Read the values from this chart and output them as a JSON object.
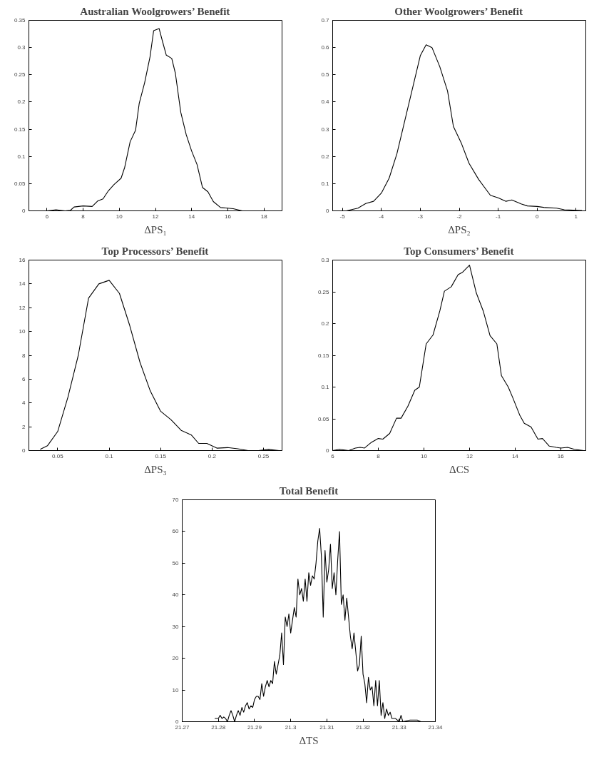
{
  "chart_data": [
    {
      "type": "line",
      "title": "Australian Woolgrowers’ Benefit",
      "xlabel": "ΔPS₁",
      "color": "#000000",
      "grid": false,
      "x": [
        6,
        6.5,
        7,
        7.3,
        7.5,
        8,
        8.5,
        8.8,
        9.1,
        9.4,
        9.7,
        10.1,
        10.3,
        10.6,
        10.9,
        11.1,
        11.4,
        11.7,
        11.9,
        12.2,
        12.4,
        12.6,
        12.9,
        13.1,
        13.4,
        13.7,
        14,
        14.3,
        14.6,
        14.9,
        15.2,
        15.6,
        16,
        16.3,
        16.8,
        18.5
      ],
      "values": [
        0,
        0.002,
        0,
        0.001,
        0.007,
        0.009,
        0.008,
        0.018,
        0.022,
        0.037,
        0.048,
        0.06,
        0.08,
        0.127,
        0.148,
        0.197,
        0.235,
        0.283,
        0.331,
        0.335,
        0.31,
        0.286,
        0.28,
        0.253,
        0.181,
        0.14,
        0.11,
        0.085,
        0.043,
        0.035,
        0.017,
        0.006,
        0.005,
        0.004,
        0,
        0
      ],
      "xlim": [
        5,
        19
      ],
      "ylim": [
        0,
        0.35
      ],
      "xticks": [
        6,
        8,
        10,
        12,
        14,
        16,
        18
      ],
      "yticks": [
        0,
        0.05,
        0.1,
        0.15,
        0.2,
        0.25,
        0.3,
        0.35
      ]
    },
    {
      "type": "line",
      "title": "Other Woolgrowers’ Benefit",
      "xlabel": "ΔPS₂",
      "color": "#000000",
      "grid": false,
      "x": [
        -4.9,
        -4.6,
        -4.4,
        -4.2,
        -4,
        -3.8,
        -3.6,
        -3.4,
        -3.2,
        -3,
        -2.85,
        -2.7,
        -2.5,
        -2.3,
        -2.15,
        -1.95,
        -1.75,
        -1.5,
        -1.2,
        -1,
        -0.8,
        -0.65,
        -0.4,
        -0.25,
        0,
        0.2,
        0.5,
        0.7,
        1.15
      ],
      "values": [
        0,
        0.01,
        0.027,
        0.035,
        0.065,
        0.12,
        0.21,
        0.33,
        0.45,
        0.57,
        0.61,
        0.6,
        0.53,
        0.44,
        0.31,
        0.25,
        0.175,
        0.115,
        0.057,
        0.048,
        0.035,
        0.04,
        0.025,
        0.018,
        0.016,
        0.012,
        0.01,
        0.004,
        0.001
      ],
      "xlim": [
        -5.25,
        1.25
      ],
      "ylim": [
        0,
        0.7
      ],
      "xticks": [
        -5,
        -4,
        -3,
        -2,
        -1,
        0,
        1
      ],
      "yticks": [
        0,
        0.1,
        0.2,
        0.3,
        0.4,
        0.5,
        0.6,
        0.7
      ]
    },
    {
      "type": "line",
      "title": "Top Processors’ Benefit",
      "xlabel": "ΔPS₃",
      "color": "#000000",
      "grid": false,
      "x": [
        0.033,
        0.04,
        0.05,
        0.06,
        0.07,
        0.08,
        0.09,
        0.1,
        0.11,
        0.12,
        0.13,
        0.14,
        0.15,
        0.16,
        0.17,
        0.18,
        0.187,
        0.195,
        0.205,
        0.215,
        0.225,
        0.235,
        0.245,
        0.255,
        0.265
      ],
      "values": [
        0.1,
        0.4,
        1.6,
        4.5,
        8,
        12.8,
        14,
        14.3,
        13.2,
        10.5,
        7.4,
        5,
        3.3,
        2.6,
        1.7,
        1.3,
        0.6,
        0.6,
        0.2,
        0.25,
        0.15,
        0,
        0,
        0.1,
        0
      ],
      "xlim": [
        0.022,
        0.268
      ],
      "ylim": [
        0,
        16
      ],
      "xticks": [
        0.05,
        0.1,
        0.15,
        0.2,
        0.25
      ],
      "yticks": [
        0,
        2,
        4,
        6,
        8,
        10,
        12,
        14,
        16
      ]
    },
    {
      "type": "line",
      "title": "Top Consumers’ Benefit",
      "xlabel": "ΔCS",
      "color": "#000000",
      "grid": false,
      "x": [
        6,
        6.3,
        6.7,
        7,
        7.2,
        7.4,
        7.7,
        8,
        8.2,
        8.5,
        8.8,
        9,
        9.3,
        9.6,
        9.8,
        10.1,
        10.4,
        10.7,
        10.9,
        11.2,
        11.5,
        11.7,
        12,
        12.3,
        12.6,
        12.9,
        13.2,
        13.4,
        13.7,
        13.9,
        14.2,
        14.4,
        14.7,
        15,
        15.2,
        15.5,
        15.8,
        16,
        16.3,
        16.6,
        17
      ],
      "values": [
        0,
        0.002,
        0,
        0.004,
        0.005,
        0.004,
        0.013,
        0.019,
        0.018,
        0.027,
        0.051,
        0.051,
        0.07,
        0.095,
        0.1,
        0.168,
        0.182,
        0.22,
        0.251,
        0.258,
        0.277,
        0.281,
        0.292,
        0.248,
        0.22,
        0.181,
        0.168,
        0.118,
        0.1,
        0.083,
        0.056,
        0.043,
        0.037,
        0.018,
        0.019,
        0.007,
        0.005,
        0.004,
        0.005,
        0.002,
        0
      ],
      "xlim": [
        6,
        17.1
      ],
      "ylim": [
        0,
        0.3
      ],
      "xticks": [
        6,
        8,
        10,
        12,
        14,
        16
      ],
      "yticks": [
        0,
        0.05,
        0.1,
        0.15,
        0.2,
        0.25,
        0.3
      ]
    },
    {
      "type": "line",
      "title": "Total Benefit",
      "xlabel": "ΔTS",
      "color": "#000000",
      "grid": false,
      "x": [
        21.279,
        21.28,
        21.2805,
        21.281,
        21.2815,
        21.282,
        21.2825,
        21.283,
        21.2835,
        21.284,
        21.2845,
        21.285,
        21.2855,
        21.286,
        21.2865,
        21.287,
        21.2875,
        21.288,
        21.2885,
        21.289,
        21.2895,
        21.29,
        21.2905,
        21.291,
        21.2915,
        21.292,
        21.2925,
        21.293,
        21.2935,
        21.294,
        21.2945,
        21.295,
        21.2955,
        21.296,
        21.2965,
        21.297,
        21.2975,
        21.298,
        21.2985,
        21.299,
        21.2995,
        21.3,
        21.3005,
        21.301,
        21.3015,
        21.302,
        21.3025,
        21.303,
        21.3035,
        21.304,
        21.3045,
        21.305,
        21.3055,
        21.306,
        21.3065,
        21.307,
        21.3075,
        21.308,
        21.3085,
        21.309,
        21.3095,
        21.31,
        21.3105,
        21.311,
        21.3115,
        21.312,
        21.3125,
        21.313,
        21.3135,
        21.314,
        21.3145,
        21.315,
        21.3155,
        21.316,
        21.3165,
        21.317,
        21.3175,
        21.318,
        21.3185,
        21.319,
        21.3195,
        21.32,
        21.3205,
        21.321,
        21.3215,
        21.322,
        21.3225,
        21.323,
        21.3235,
        21.324,
        21.3245,
        21.325,
        21.3255,
        21.326,
        21.3265,
        21.327,
        21.3275,
        21.328,
        21.329,
        21.33,
        21.3305,
        21.331,
        21.333,
        21.335,
        21.336
      ],
      "values": [
        1,
        1,
        2,
        1,
        1.5,
        1,
        0,
        2,
        3.5,
        2,
        0,
        2,
        3.5,
        2,
        4.5,
        3,
        5,
        6,
        4,
        5,
        4.5,
        7,
        8,
        8,
        7,
        12,
        8,
        11,
        13,
        11,
        13,
        12,
        19,
        15,
        18,
        21,
        28,
        18,
        33,
        30,
        34,
        28,
        32,
        36,
        33,
        45,
        40,
        42,
        38,
        45,
        38,
        47,
        43,
        46,
        45,
        50,
        57,
        61,
        52,
        33,
        54,
        44,
        48,
        56,
        42,
        47,
        40,
        51,
        60,
        37,
        40,
        32,
        39,
        33,
        27,
        23,
        28,
        22,
        16,
        18,
        27,
        15,
        12,
        6,
        14,
        10,
        11,
        5,
        13,
        5,
        13,
        2,
        6,
        1,
        4,
        2,
        3,
        1,
        1,
        0,
        2,
        0,
        0.5,
        0.5,
        0
      ],
      "xlim": [
        21.27,
        21.34
      ],
      "ylim": [
        0,
        70
      ],
      "xticks": [
        21.27,
        21.28,
        21.29,
        21.3,
        21.31,
        21.32,
        21.33,
        21.34
      ],
      "yticks": [
        0,
        10,
        20,
        30,
        40,
        50,
        60,
        70
      ]
    }
  ]
}
